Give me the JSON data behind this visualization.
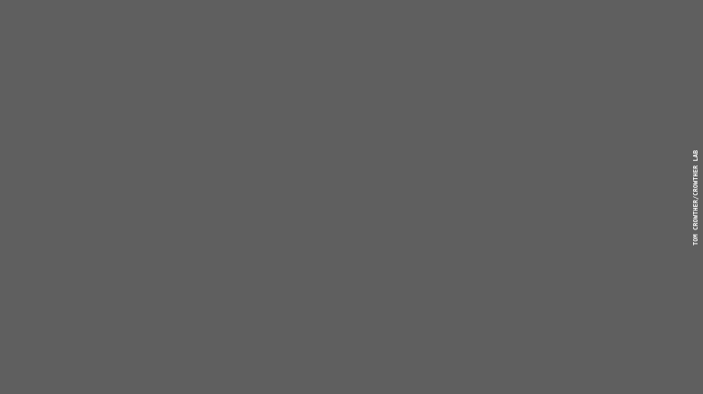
{
  "background_color": "#606060",
  "ocean_color": "#606060",
  "fig_width": 7.8,
  "fig_height": 4.38,
  "dpi": 100,
  "watermark_text": "TOM CROWTHER/CROWTHER LAB",
  "watermark_color": "#ffffff",
  "watermark_fontsize": 5,
  "existing_forest_color": "#44ff44",
  "potential_forest_color": "#ccff00",
  "barren_color": "#050505",
  "seed": 42
}
